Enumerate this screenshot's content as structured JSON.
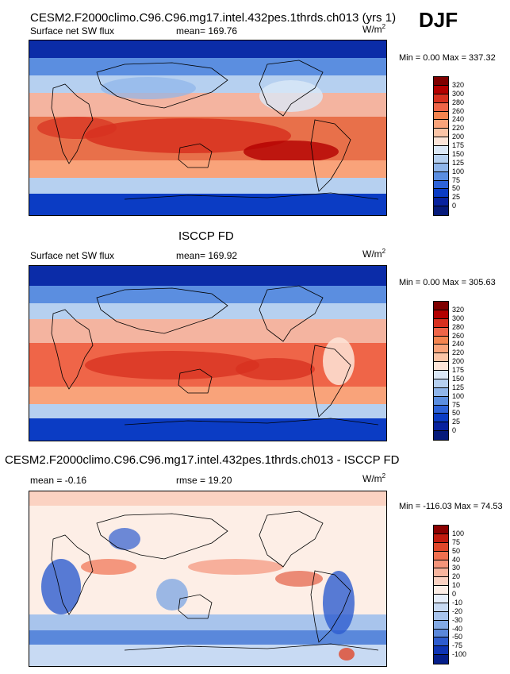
{
  "header": {
    "panel1_title": "CESM2.F2000climo.C96.C96.mg17.intel.432pes.1thrds.ch013 (yrs 1)",
    "season": "DJF"
  },
  "chart_data": [
    {
      "type": "heatmap",
      "name": "model",
      "variable": "Surface net SW flux",
      "mean_text": "mean= 169.76",
      "units_base": "W/m",
      "units_exp": "2",
      "minmax_text": "Min =   0.00 Max = 337.32",
      "min": 0.0,
      "max": 337.32,
      "levels": [
        "320",
        "300",
        "280",
        "260",
        "240",
        "220",
        "200",
        "175",
        "150",
        "125",
        "100",
        "75",
        "50",
        "25",
        "0"
      ],
      "colors": [
        "#7f0000",
        "#b30000",
        "#d7301f",
        "#ef6548",
        "#f4844f",
        "#f9a37a",
        "#fbc4a6",
        "#fde5d8",
        "#dbe8f7",
        "#b6d0f0",
        "#8fb5ea",
        "#5b8ee0",
        "#2e63d8",
        "#0b3cc4",
        "#08229e",
        "#061a7a"
      ]
    },
    {
      "type": "heatmap",
      "name": "obs",
      "heading": "ISCCP FD",
      "variable": "Surface net SW flux",
      "mean_text": "mean= 169.92",
      "units_base": "W/m",
      "units_exp": "2",
      "minmax_text": "Min =   0.00 Max = 305.63",
      "min": 0.0,
      "max": 305.63,
      "levels": [
        "320",
        "300",
        "280",
        "260",
        "240",
        "220",
        "200",
        "175",
        "150",
        "125",
        "100",
        "75",
        "50",
        "25",
        "0"
      ],
      "colors": [
        "#7f0000",
        "#b30000",
        "#d7301f",
        "#ef6548",
        "#f4844f",
        "#f9a37a",
        "#fbc4a6",
        "#fde5d8",
        "#dbe8f7",
        "#b6d0f0",
        "#8fb5ea",
        "#5b8ee0",
        "#2e63d8",
        "#0b3cc4",
        "#08229e",
        "#061a7a"
      ]
    },
    {
      "type": "heatmap",
      "name": "diff",
      "heading": "CESM2.F2000climo.C96.C96.mg17.intel.432pes.1thrds.ch013 - ISCCP FD",
      "mean_text": "mean =  -0.16",
      "rmse_text": "rmse =  19.20",
      "units_base": "W/m",
      "units_exp": "2",
      "minmax_text": "Min = -116.03 Max =  74.53",
      "min": -116.03,
      "max": 74.53,
      "levels": [
        "100",
        "75",
        "50",
        "40",
        "30",
        "20",
        "10",
        "0",
        "-10",
        "-20",
        "-30",
        "-40",
        "-50",
        "-75",
        "-100"
      ],
      "colors": [
        "#8b0000",
        "#c21b0e",
        "#e0472a",
        "#f07050",
        "#f4947a",
        "#f8b59e",
        "#fbd2c2",
        "#fdeee6",
        "#e6eefa",
        "#c8daf3",
        "#a8c4ec",
        "#82a9e4",
        "#5a88db",
        "#2d5ccf",
        "#0e34b4",
        "#051e8a"
      ]
    }
  ]
}
